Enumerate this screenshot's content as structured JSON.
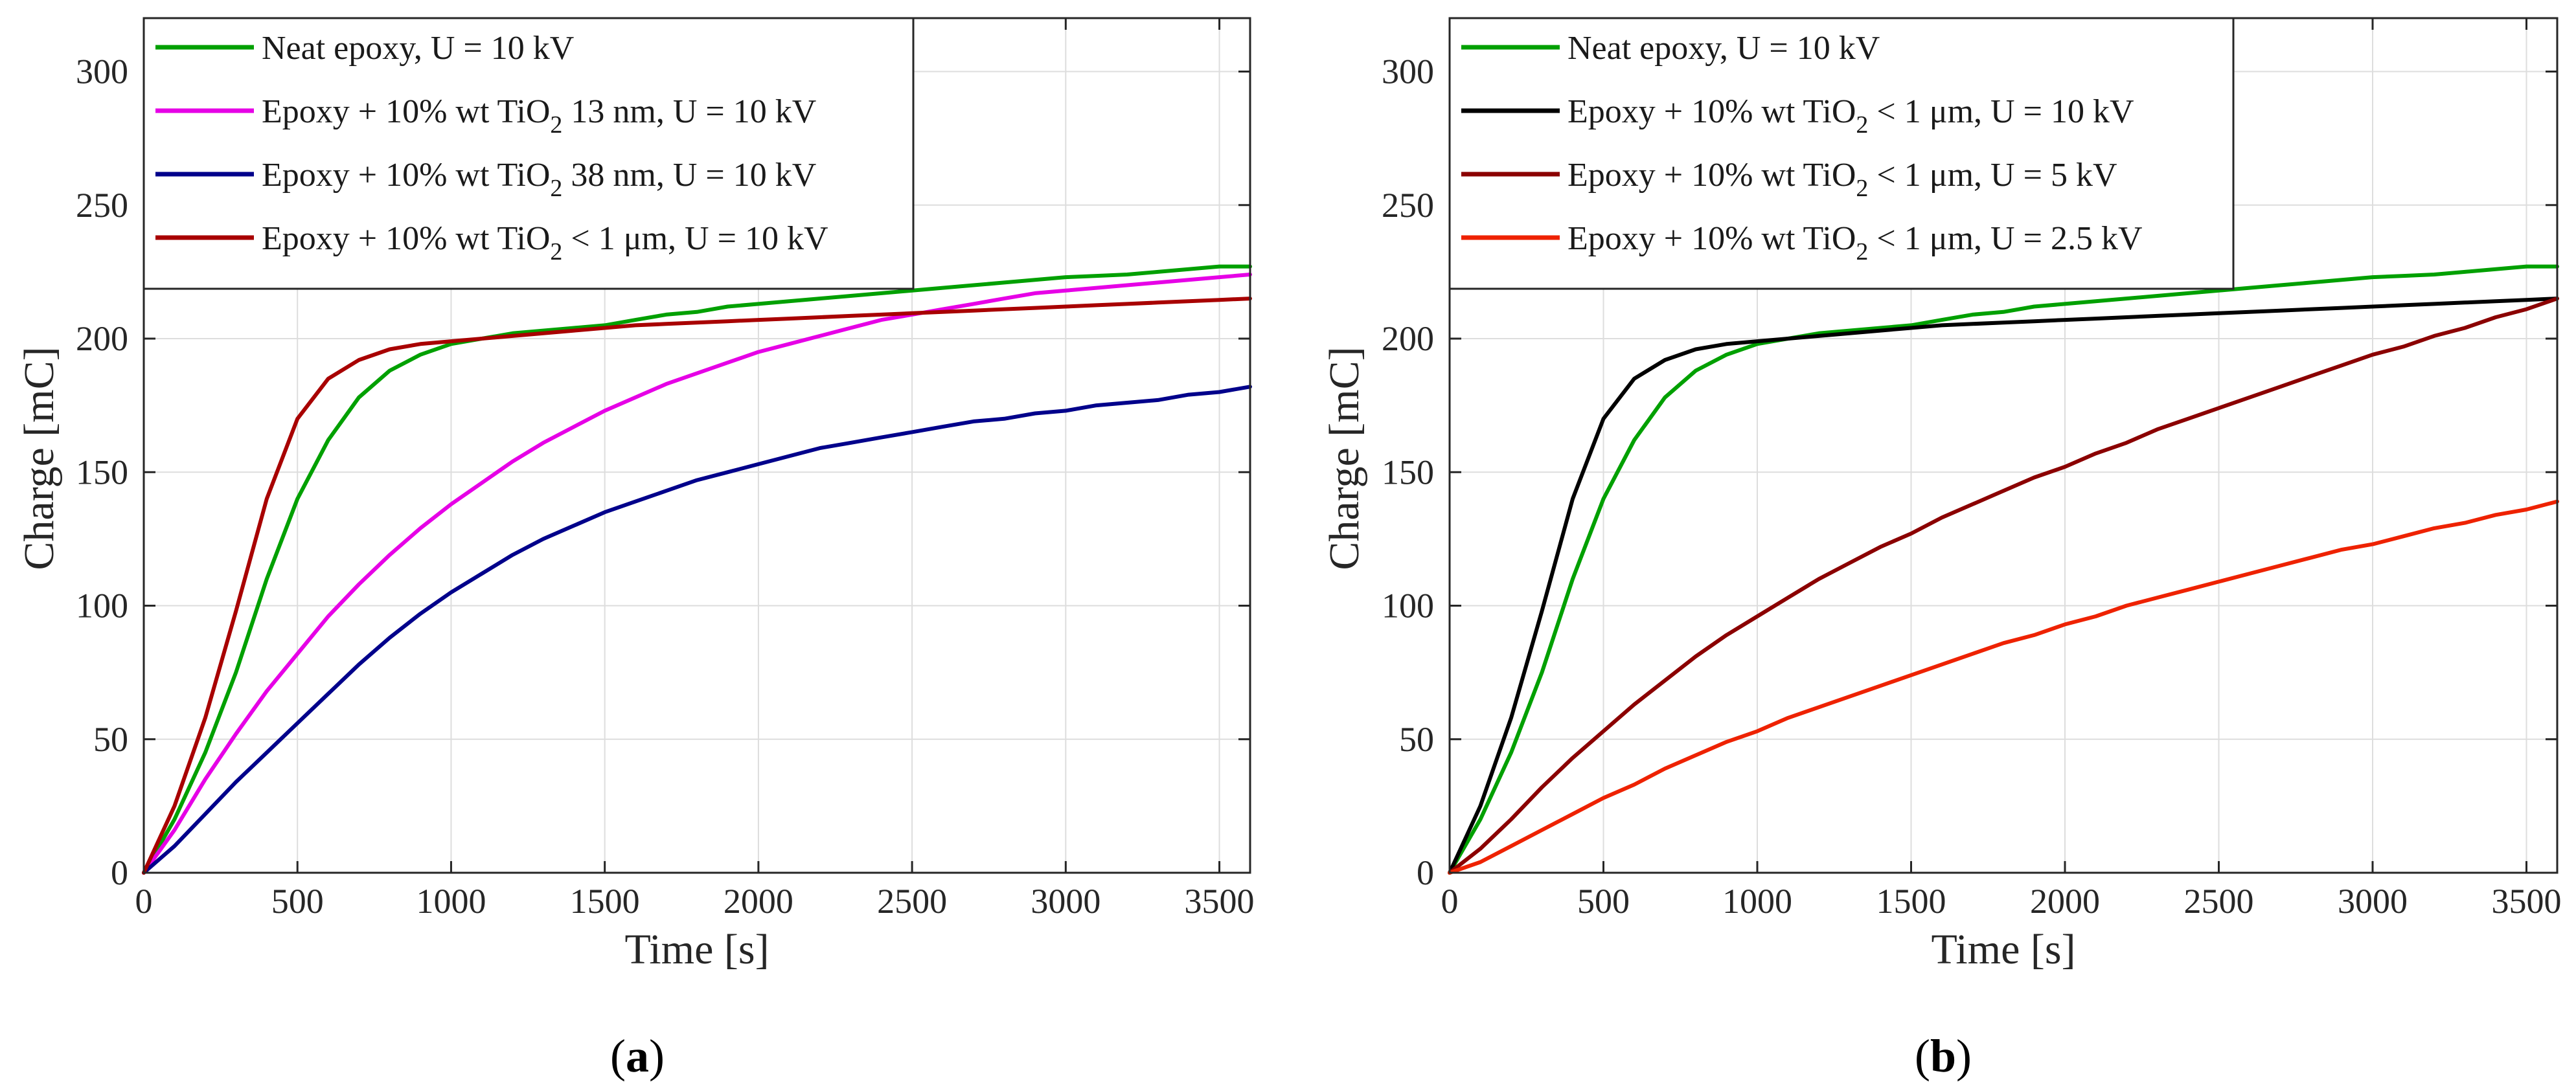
{
  "chart_data": [
    {
      "type": "line",
      "panel": "a",
      "caption": {
        "open": "(",
        "letter": "a",
        "close": ")"
      },
      "xlabel": "Time [s]",
      "ylabel": "Charge [mC]",
      "xlim": [
        0,
        3600
      ],
      "ylim": [
        0,
        320
      ],
      "xticks": [
        0,
        500,
        1000,
        1500,
        2000,
        2500,
        3000,
        3500
      ],
      "yticks": [
        0,
        50,
        100,
        150,
        200,
        250,
        300
      ],
      "grid": true,
      "legend_position": "top-left",
      "x": [
        0,
        100,
        200,
        300,
        400,
        500,
        600,
        700,
        800,
        900,
        1000,
        1100,
        1200,
        1300,
        1400,
        1500,
        1600,
        1700,
        1800,
        1900,
        2000,
        2100,
        2200,
        2300,
        2400,
        2500,
        2600,
        2700,
        2800,
        2900,
        3000,
        3100,
        3200,
        3300,
        3400,
        3500,
        3600
      ],
      "series": [
        {
          "name": "Neat epoxy, U = 10 kV",
          "legend": {
            "pre": "Neat epoxy, U = 10 kV",
            "sub": "",
            "post": ""
          },
          "color": "#00a000",
          "values": [
            0,
            20,
            45,
            75,
            110,
            140,
            162,
            178,
            188,
            194,
            198,
            200,
            202,
            203,
            204,
            205,
            207,
            209,
            210,
            212,
            213,
            214,
            215,
            216,
            217,
            218,
            219,
            220,
            221,
            222,
            223,
            223.5,
            224,
            225,
            226,
            227,
            227
          ]
        },
        {
          "name": "Epoxy + 10% wt TiO2 13 nm, U = 10 kV",
          "legend": {
            "pre": "Epoxy + 10% wt TiO",
            "sub": "2",
            "post": " 13 nm, U = 10 kV"
          },
          "color": "#e600e6",
          "values": [
            0,
            16,
            35,
            52,
            68,
            82,
            96,
            108,
            119,
            129,
            138,
            146,
            154,
            161,
            167,
            173,
            178,
            183,
            187,
            191,
            195,
            198,
            201,
            204,
            207,
            209,
            211,
            213,
            215,
            217,
            218,
            219,
            220,
            221,
            222,
            223,
            224
          ]
        },
        {
          "name": "Epoxy + 10% wt TiO2 38 nm, U = 10 kV",
          "legend": {
            "pre": "Epoxy + 10% wt TiO",
            "sub": "2",
            "post": " 38 nm, U = 10 kV"
          },
          "color": "#00008b",
          "values": [
            0,
            10,
            22,
            34,
            45,
            56,
            67,
            78,
            88,
            97,
            105,
            112,
            119,
            125,
            130,
            135,
            139,
            143,
            147,
            150,
            153,
            156,
            159,
            161,
            163,
            165,
            167,
            169,
            170,
            172,
            173,
            175,
            176,
            177,
            179,
            180,
            182
          ]
        },
        {
          "name": "Epoxy + 10% wt TiO2 < 1 μm, U = 10 kV",
          "legend": {
            "pre": "Epoxy + 10% wt TiO",
            "sub": "2",
            "post": " < 1 μm, U = 10 kV"
          },
          "color": "#a80000",
          "values": [
            0,
            25,
            58,
            98,
            140,
            170,
            185,
            192,
            196,
            198,
            199,
            200,
            201,
            202,
            203,
            204,
            205,
            205.5,
            206,
            206.5,
            207,
            207.5,
            208,
            208.5,
            209,
            209.5,
            210,
            210.5,
            211,
            211.5,
            212,
            212.5,
            213,
            213.5,
            214,
            214.5,
            215
          ]
        }
      ]
    },
    {
      "type": "line",
      "panel": "b",
      "caption": {
        "open": "(",
        "letter": "b",
        "close": ")"
      },
      "xlabel": "Time [s]",
      "ylabel": "Charge [mC]",
      "xlim": [
        0,
        3600
      ],
      "ylim": [
        0,
        320
      ],
      "xticks": [
        0,
        500,
        1000,
        1500,
        2000,
        2500,
        3000,
        3500
      ],
      "yticks": [
        0,
        50,
        100,
        150,
        200,
        250,
        300
      ],
      "grid": true,
      "legend_position": "top-left",
      "x": [
        0,
        100,
        200,
        300,
        400,
        500,
        600,
        700,
        800,
        900,
        1000,
        1100,
        1200,
        1300,
        1400,
        1500,
        1600,
        1700,
        1800,
        1900,
        2000,
        2100,
        2200,
        2300,
        2400,
        2500,
        2600,
        2700,
        2800,
        2900,
        3000,
        3100,
        3200,
        3300,
        3400,
        3500,
        3600
      ],
      "series": [
        {
          "name": "Neat epoxy, U = 10 kV",
          "legend": {
            "pre": "Neat epoxy, U = 10 kV",
            "sub": "",
            "post": ""
          },
          "color": "#00a000",
          "values": [
            0,
            20,
            45,
            75,
            110,
            140,
            162,
            178,
            188,
            194,
            198,
            200,
            202,
            203,
            204,
            205,
            207,
            209,
            210,
            212,
            213,
            214,
            215,
            216,
            217,
            218,
            219,
            220,
            221,
            222,
            223,
            223.5,
            224,
            225,
            226,
            227,
            227
          ]
        },
        {
          "name": "Epoxy + 10% wt TiO2 < 1 μm, U = 10 kV",
          "legend": {
            "pre": "Epoxy + 10% wt TiO",
            "sub": "2",
            "post": " < 1 μm, U = 10 kV"
          },
          "color": "#000000",
          "values": [
            0,
            25,
            58,
            98,
            140,
            170,
            185,
            192,
            196,
            198,
            199,
            200,
            201,
            202,
            203,
            204,
            205,
            205.5,
            206,
            206.5,
            207,
            207.5,
            208,
            208.5,
            209,
            209.5,
            210,
            210.5,
            211,
            211.5,
            212,
            212.5,
            213,
            213.5,
            214,
            214.5,
            215
          ]
        },
        {
          "name": "Epoxy + 10% wt TiO2 < 1 μm, U = 5 kV",
          "legend": {
            "pre": "Epoxy + 10% wt TiO",
            "sub": "2",
            "post": " < 1 μm, U = 5 kV"
          },
          "color": "#8b0000",
          "values": [
            0,
            9,
            20,
            32,
            43,
            53,
            63,
            72,
            81,
            89,
            96,
            103,
            110,
            116,
            122,
            127,
            133,
            138,
            143,
            148,
            152,
            157,
            161,
            166,
            170,
            174,
            178,
            182,
            186,
            190,
            194,
            197,
            201,
            204,
            208,
            211,
            215
          ]
        },
        {
          "name": "Epoxy + 10% wt TiO2 < 1 μm, U = 2.5 kV",
          "legend": {
            "pre": "Epoxy + 10% wt TiO",
            "sub": "2",
            "post": " < 1 μm, U = 2.5 kV"
          },
          "color": "#ee2200",
          "values": [
            0,
            4,
            10,
            16,
            22,
            28,
            33,
            39,
            44,
            49,
            53,
            58,
            62,
            66,
            70,
            74,
            78,
            82,
            86,
            89,
            93,
            96,
            100,
            103,
            106,
            109,
            112,
            115,
            118,
            121,
            123,
            126,
            129,
            131,
            134,
            136,
            139
          ]
        }
      ]
    }
  ]
}
